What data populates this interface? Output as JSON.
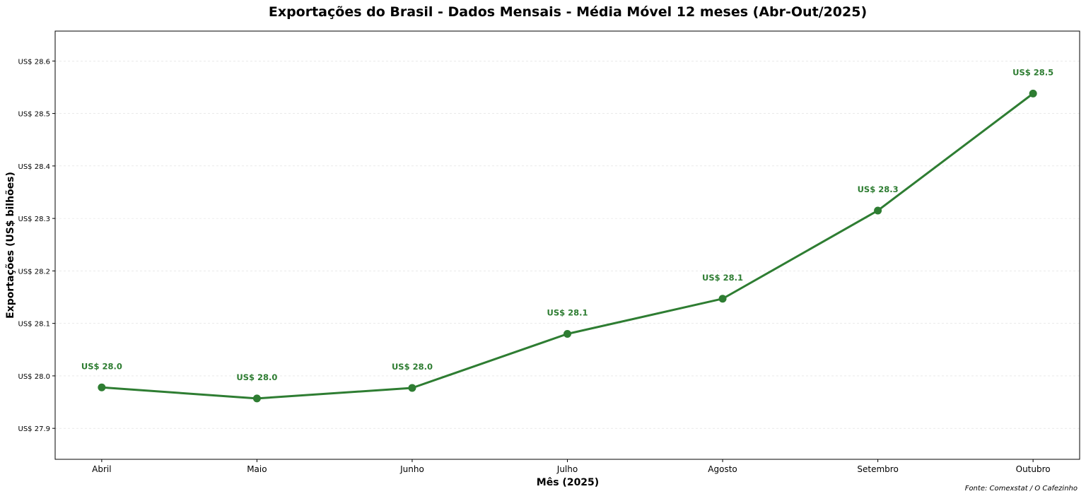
{
  "chart_data": {
    "type": "line",
    "title": "Exportações do Brasil - Dados Mensais - Média Móvel 12 meses (Abr-Out/2025)",
    "xlabel": "Mês (2025)",
    "ylabel": "Exportações (US$ bilhões)",
    "categories": [
      "Abril",
      "Maio",
      "Junho",
      "Julho",
      "Agosto",
      "Setembro",
      "Outubro"
    ],
    "values": [
      27.978,
      27.957,
      27.977,
      28.08,
      28.147,
      28.315,
      28.538
    ],
    "data_labels": [
      "US$ 28.0",
      "US$ 28.0",
      "US$ 28.0",
      "US$ 28.1",
      "US$ 28.1",
      "US$ 28.3",
      "US$ 28.5"
    ],
    "yticks": [
      27.9,
      28.0,
      28.1,
      28.2,
      28.3,
      28.4,
      28.5,
      28.6
    ],
    "ytick_labels": [
      "US$ 27.9",
      "US$ 28.0",
      "US$ 28.1",
      "US$ 28.2",
      "US$ 28.3",
      "US$ 28.4",
      "US$ 28.5",
      "US$ 28.6"
    ],
    "ylim": [
      27.841,
      28.657
    ],
    "grid": true,
    "color": "#2e7d32",
    "source_note": "Fonte: Comexstat / O Cafezinho"
  }
}
